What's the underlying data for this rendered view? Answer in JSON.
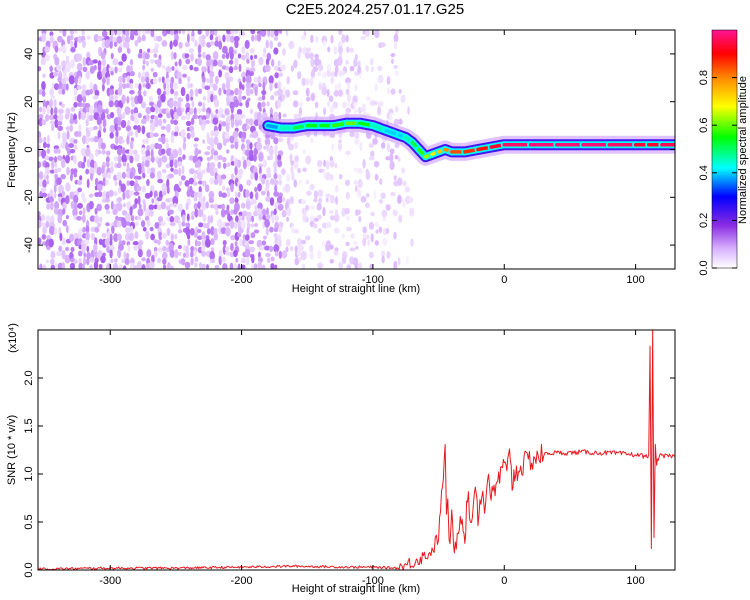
{
  "title": "C2E5.2024.257.01.17.G25",
  "chart_data": [
    {
      "type": "heatmap",
      "xlabel": "Height of straight line (km)",
      "ylabel": "Frequency (Hz)",
      "xlim": [
        -355,
        130
      ],
      "ylim": [
        -50,
        50
      ],
      "x_ticks": [
        -300,
        -200,
        -100,
        0,
        100
      ],
      "y_ticks": [
        -40,
        -20,
        0,
        20,
        40
      ],
      "colorbar": {
        "label": "Normalized spectral amplitude",
        "range": [
          0,
          1
        ],
        "ticks": [
          "0.0",
          "0.2",
          "0.4",
          "0.6",
          "0.8"
        ],
        "colors": [
          "#ffffff",
          "#d9b3ff",
          "#8a2be2",
          "#0000ff",
          "#00ffff",
          "#00ff00",
          "#ffff00",
          "#ff8800",
          "#ff0000",
          "#ff1493"
        ]
      },
      "ridge": {
        "x": [
          -180,
          -170,
          -160,
          -150,
          -140,
          -130,
          -120,
          -110,
          -100,
          -90,
          -80,
          -75,
          -70,
          -65,
          -60,
          -55,
          -50,
          -45,
          -40,
          -30,
          -20,
          -10,
          0,
          20,
          40,
          60,
          80,
          100,
          110,
          120,
          130
        ],
        "freq": [
          10,
          9,
          9,
          10,
          10,
          10,
          11,
          11,
          10,
          8,
          6,
          5,
          3,
          0,
          -3,
          -2,
          -1,
          0,
          -1,
          -1,
          0,
          1,
          2,
          2,
          2,
          2,
          2,
          2,
          2,
          2,
          2
        ],
        "amplitude": [
          0.35,
          0.45,
          0.5,
          0.55,
          0.55,
          0.55,
          0.6,
          0.6,
          0.5,
          0.45,
          0.4,
          0.45,
          0.5,
          0.55,
          0.6,
          0.65,
          0.7,
          0.75,
          0.8,
          0.85,
          0.85,
          0.9,
          0.95,
          0.98,
          0.98,
          0.98,
          0.98,
          0.95,
          0.9,
          0.95,
          0.95
        ]
      }
    },
    {
      "type": "line",
      "xlabel": "Height of straight line (km)",
      "ylabel": "SNR (10 * v/v)",
      "y_multiplier": "(x10⁴)",
      "xlim": [
        -355,
        130
      ],
      "ylim": [
        0,
        2.5
      ],
      "x_ticks": [
        -300,
        -200,
        -100,
        0,
        100
      ],
      "y_ticks": [
        "0.0",
        "0.5",
        "1.0",
        "1.5",
        "2.0"
      ],
      "series": [
        {
          "color": "#e8191e",
          "x": [
            -355,
            -300,
            -250,
            -200,
            -160,
            -120,
            -100,
            -80,
            -70,
            -60,
            -55,
            -50,
            -47,
            -45,
            -44,
            -43,
            -42,
            -40,
            -38,
            -35,
            -32,
            -30,
            -28,
            -25,
            -22,
            -20,
            -17,
            -15,
            -12,
            -10,
            -7,
            -5,
            -2,
            0,
            2,
            4,
            6,
            8,
            10,
            15,
            20,
            25,
            30,
            35,
            40,
            50,
            60,
            70,
            80,
            90,
            100,
            105,
            108,
            110,
            111,
            112,
            113,
            114,
            115,
            116,
            118,
            120,
            125,
            130
          ],
          "y": [
            0.01,
            0.02,
            0.02,
            0.03,
            0.04,
            0.03,
            0.03,
            0.02,
            0.08,
            0.15,
            0.2,
            0.35,
            0.9,
            1.25,
            0.5,
            0.8,
            0.25,
            0.55,
            0.15,
            0.45,
            0.6,
            0.3,
            0.8,
            0.45,
            0.95,
            0.55,
            0.85,
            0.6,
            1.05,
            0.75,
            0.8,
            0.95,
            1.0,
            1.1,
            0.95,
            1.35,
            0.9,
            1.0,
            1.05,
            1.1,
            1.15,
            1.18,
            1.2,
            1.22,
            1.22,
            1.22,
            1.23,
            1.22,
            1.22,
            1.21,
            1.2,
            1.19,
            1.18,
            1.2,
            2.35,
            0.2,
            2.5,
            0.35,
            1.3,
            1.1,
            1.2,
            1.18,
            1.19,
            1.18
          ]
        }
      ]
    }
  ]
}
